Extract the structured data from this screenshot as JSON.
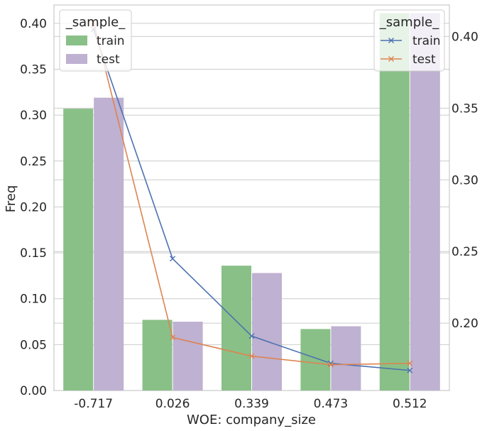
{
  "chart_data": {
    "type": "bar",
    "xlabel": "WOE: company_size",
    "ylabel": "Freq",
    "categories": [
      "-0.717",
      "0.026",
      "0.339",
      "0.473",
      "0.512"
    ],
    "ylim": [
      0,
      0.42
    ],
    "yticks": [
      "0.00",
      "0.05",
      "0.10",
      "0.15",
      "0.20",
      "0.25",
      "0.30",
      "0.35",
      "0.40"
    ],
    "series": [
      {
        "name": "train",
        "values": [
          0.307,
          0.077,
          0.136,
          0.067,
          0.411
        ],
        "color": "#89c087"
      },
      {
        "name": "test",
        "values": [
          0.319,
          0.075,
          0.128,
          0.07,
          0.411
        ],
        "color": "#bfb1d1"
      }
    ],
    "line_ylim": [
      0.153,
      0.422
    ],
    "line_yticks": [
      "0.20",
      "0.25",
      "0.30",
      "0.35",
      "0.40"
    ],
    "line_series": [
      {
        "name": "train",
        "values": [
          0.405,
          0.245,
          0.191,
          0.172,
          0.167
        ],
        "color": "#4c72b0",
        "marker": "x"
      },
      {
        "name": "test",
        "values": [
          0.41,
          0.19,
          0.177,
          0.171,
          0.172
        ],
        "color": "#dd8452",
        "marker": "x"
      }
    ],
    "grid": true,
    "legends": [
      {
        "title": "_sample_",
        "placement": "top-left",
        "items": [
          "train",
          "test"
        ]
      },
      {
        "title": "_sample_",
        "placement": "top-right",
        "items": [
          "train",
          "test"
        ]
      }
    ]
  }
}
